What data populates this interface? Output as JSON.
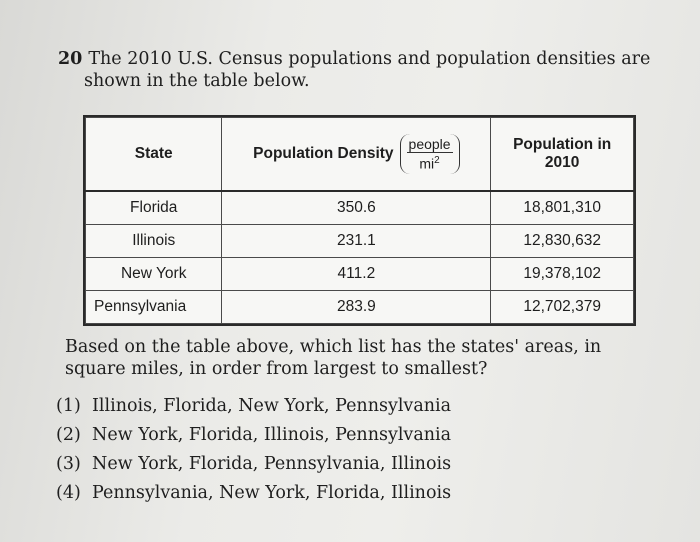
{
  "question": {
    "number": "20",
    "text_line1": "The 2010 U.S. Census populations and population densities are",
    "text_line2": "shown in the table below."
  },
  "table": {
    "headers": {
      "state": "State",
      "density": "Population Density",
      "density_unit_num": "people",
      "density_unit_den": "mi",
      "density_unit_exp": "2",
      "population_line1": "Population in",
      "population_line2": "2010"
    },
    "rows": [
      {
        "state": "Florida",
        "density": "350.6",
        "population": "18,801,310"
      },
      {
        "state": "Illinois",
        "density": "231.1",
        "population": "12,830,632"
      },
      {
        "state": "New York",
        "density": "411.2",
        "population": "19,378,102"
      },
      {
        "state": "Pennsylvania",
        "density": "283.9",
        "population": "12,702,379"
      }
    ]
  },
  "prompt": "Based on the table above, which list has the states' areas, in square miles, in order from largest to smallest?",
  "choices": [
    {
      "num": "(1)",
      "text": "Illinois, Florida, New York, Pennsylvania"
    },
    {
      "num": "(2)",
      "text": "New York, Florida, Illinois, Pennsylvania"
    },
    {
      "num": "(3)",
      "text": "New York, Florida, Pennsylvania, Illinois"
    },
    {
      "num": "(4)",
      "text": "Pennsylvania, New York, Florida, Illinois"
    }
  ]
}
